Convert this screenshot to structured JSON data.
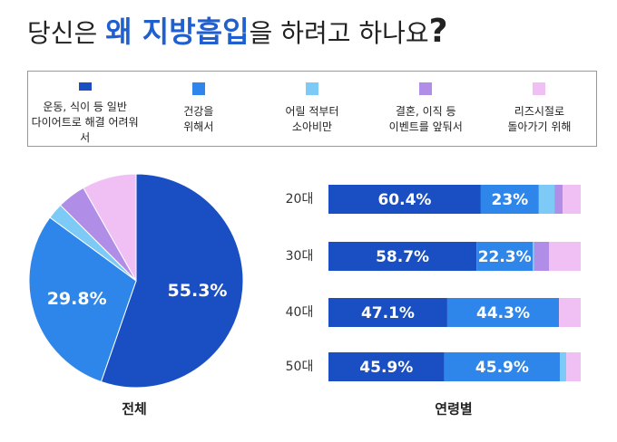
{
  "title_parts": [
    "당신은 ",
    "왜 지방흡입",
    "을 하려고 하나요",
    "?"
  ],
  "chart_data": [
    {
      "type": "pie",
      "caption": "전체",
      "values": [
        55.3,
        29.8,
        2.4,
        4.3,
        8.2
      ],
      "value_labels": [
        "55.3%",
        "29.8%",
        null,
        null,
        null
      ],
      "colors": [
        "#1a4fc4",
        "#2f86ea",
        "#7ccaf5",
        "#b08ee8",
        "#f0c0f5"
      ]
    },
    {
      "type": "stacked_barh",
      "caption": "연령별",
      "categories": [
        "20대",
        "30대",
        "40대",
        "50대"
      ],
      "xlim": [
        0,
        100
      ],
      "series": [
        {
          "name": "운동, 식이 등 일반\n다이어트로 해결 어려워서",
          "color": "#1a4fc4",
          "values": [
            60.4,
            58.7,
            47.1,
            45.9
          ],
          "value_labels": [
            "60.4%",
            "58.7%",
            "47.1%",
            "45.9%"
          ]
        },
        {
          "name": "건강을\n위해서",
          "color": "#2f86ea",
          "values": [
            23,
            22.3,
            44.3,
            45.9
          ],
          "value_labels": [
            "23%",
            "22.3%",
            "44.3%",
            "45.9%"
          ]
        },
        {
          "name": "어릴 적부터\n소아비만",
          "color": "#7ccaf5",
          "values": [
            6.2,
            0.5,
            0,
            2.5
          ]
        },
        {
          "name": "결혼, 이직 등\n이벤트를 앞둬서",
          "color": "#b08ee8",
          "values": [
            3.2,
            6,
            0,
            0
          ]
        },
        {
          "name": "리즈시절로\n돌아가기 위해",
          "color": "#f0c0f5",
          "values": [
            7.2,
            12.5,
            8.6,
            5.7
          ]
        }
      ]
    }
  ]
}
